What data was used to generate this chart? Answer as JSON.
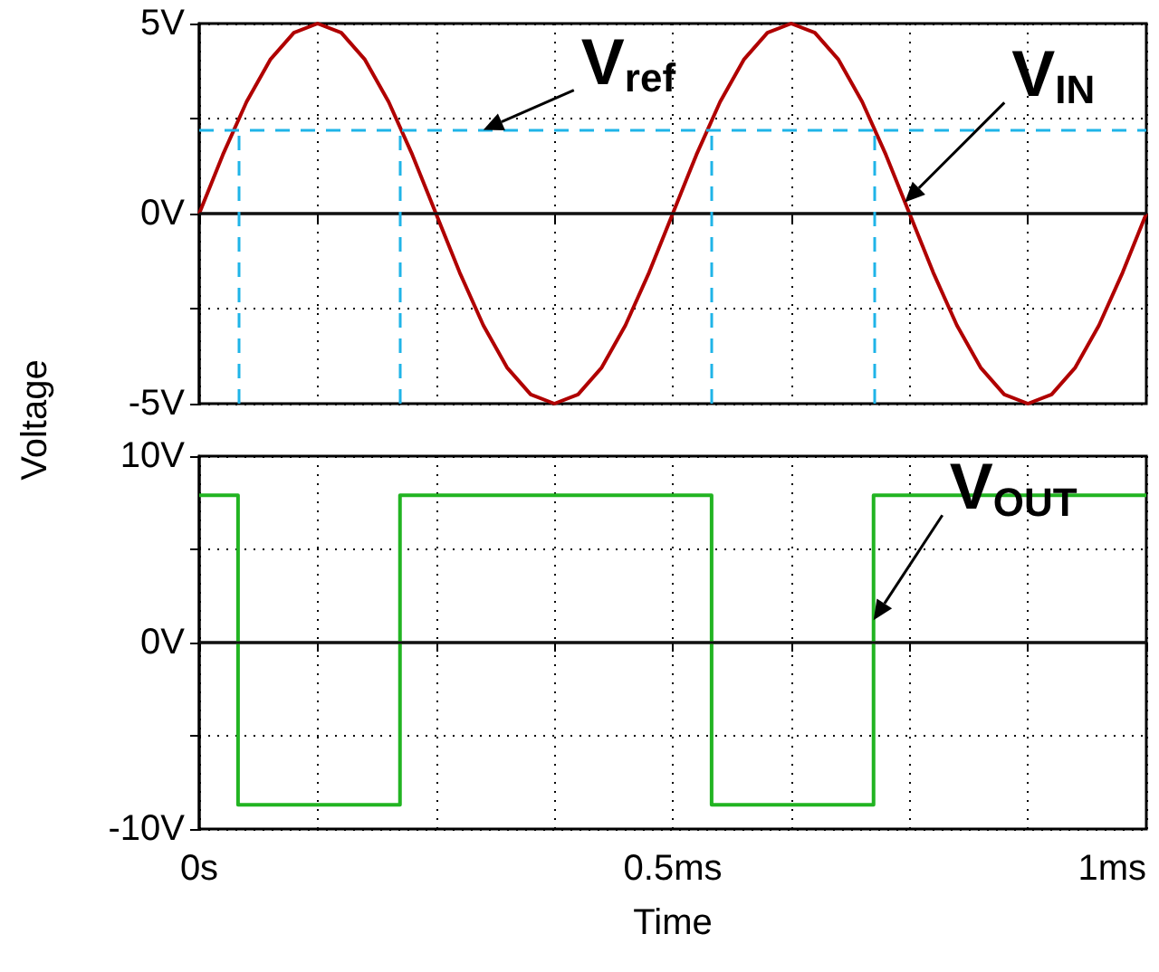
{
  "chart_data": [
    {
      "type": "line",
      "ylabel": "Voltage",
      "tick_labels": "y",
      "grid": true,
      "line_style": "solid",
      "xlim": [
        0,
        1
      ],
      "xticks": [
        {
          "value": 0,
          "label": null
        },
        {
          "value": 0.125,
          "label": null
        },
        {
          "value": 0.25,
          "label": null
        },
        {
          "value": 0.375,
          "label": null
        },
        {
          "value": 0.5,
          "label": null
        },
        {
          "value": 0.625,
          "label": null
        },
        {
          "value": 0.75,
          "label": null
        },
        {
          "value": 0.875,
          "label": null
        },
        {
          "value": 1,
          "label": null
        }
      ],
      "ylim": [
        -5,
        5
      ],
      "yticks": [
        {
          "value": -5,
          "label": "-5V"
        },
        {
          "value": -2.5,
          "label": null
        },
        {
          "value": 0,
          "label": "0V"
        },
        {
          "value": 2.5,
          "label": null
        },
        {
          "value": 5,
          "label": "5V"
        }
      ],
      "x": [
        0,
        0.025,
        0.05,
        0.075,
        0.1,
        0.125,
        0.15,
        0.175,
        0.2,
        0.225,
        0.25,
        0.275,
        0.3,
        0.325,
        0.35,
        0.375,
        0.4,
        0.425,
        0.45,
        0.475,
        0.5,
        0.525,
        0.55,
        0.575,
        0.6,
        0.625,
        0.65,
        0.675,
        0.7,
        0.725,
        0.75,
        0.775,
        0.8,
        0.825,
        0.85,
        0.875,
        0.9,
        0.925,
        0.95,
        0.975,
        1
      ],
      "series": [
        {
          "color": "#b00000",
          "values": [
            0,
            1.55,
            2.94,
            4.05,
            4.76,
            5,
            4.76,
            4.05,
            2.94,
            1.55,
            0,
            -1.55,
            -2.94,
            -4.05,
            -4.76,
            -5,
            -4.76,
            -4.05,
            -2.94,
            -1.55,
            0,
            1.55,
            2.94,
            4.05,
            4.76,
            5,
            4.76,
            4.05,
            2.94,
            1.55,
            0,
            -1.55,
            -2.94,
            -4.05,
            -4.76,
            -5,
            -4.76,
            -4.05,
            -2.94,
            -1.55,
            0
          ]
        }
      ],
      "ref_lines": [
        {
          "axis": "y",
          "value": 2.2,
          "color": "#1fb4e8",
          "line_style": "dashed"
        },
        {
          "axis": "y",
          "value": 0,
          "color": "#111111",
          "line_style": "solid"
        },
        {
          "axis": "x",
          "value": 0.041,
          "color": "#1fb4e8",
          "line_style": "dashed"
        },
        {
          "axis": "x",
          "value": 0.212,
          "color": "#1fb4e8",
          "line_style": "dashed"
        },
        {
          "axis": "x",
          "value": 0.541,
          "color": "#1fb4e8",
          "line_style": "dashed"
        },
        {
          "axis": "x",
          "value": 0.712,
          "color": "#1fb4e8",
          "line_style": "dashed"
        }
      ],
      "annotations": [
        {
          "text": "V$_{ref}$",
          "x": 0.3,
          "y": 2.2
        },
        {
          "text": "V$_{IN}$",
          "x": 0.745,
          "y": 0.3
        }
      ]
    },
    {
      "type": "step",
      "xlabel": "Time",
      "grid": true,
      "line_style": "solid",
      "xlim": [
        0,
        1
      ],
      "xticks": [
        {
          "value": 0,
          "label": "0s"
        },
        {
          "value": 0.125,
          "label": null
        },
        {
          "value": 0.25,
          "label": null
        },
        {
          "value": 0.375,
          "label": null
        },
        {
          "value": 0.5,
          "label": "0.5ms"
        },
        {
          "value": 0.625,
          "label": null
        },
        {
          "value": 0.75,
          "label": null
        },
        {
          "value": 0.875,
          "label": null
        },
        {
          "value": 1,
          "label": "1ms"
        }
      ],
      "ylim": [
        -10,
        10
      ],
      "yticks": [
        {
          "value": -10,
          "label": "-10V"
        },
        {
          "value": -5,
          "label": null
        },
        {
          "value": 0,
          "label": "0V"
        },
        {
          "value": 5,
          "label": null
        },
        {
          "value": 10,
          "label": "10V"
        }
      ],
      "x": [
        0,
        0.041,
        0.212,
        0.541,
        0.712,
        1
      ],
      "series": [
        {
          "color": "#22b422",
          "values": [
            7.9,
            -8.7,
            7.9,
            -8.7,
            7.9,
            7.9
          ]
        }
      ],
      "ref_lines": [
        {
          "axis": "y",
          "value": 0,
          "color": "#111111",
          "line_style": "solid"
        }
      ],
      "annotations": [
        {
          "text": "V$_{OUT}$",
          "x": 0.712,
          "y": 1.2
        }
      ]
    }
  ]
}
